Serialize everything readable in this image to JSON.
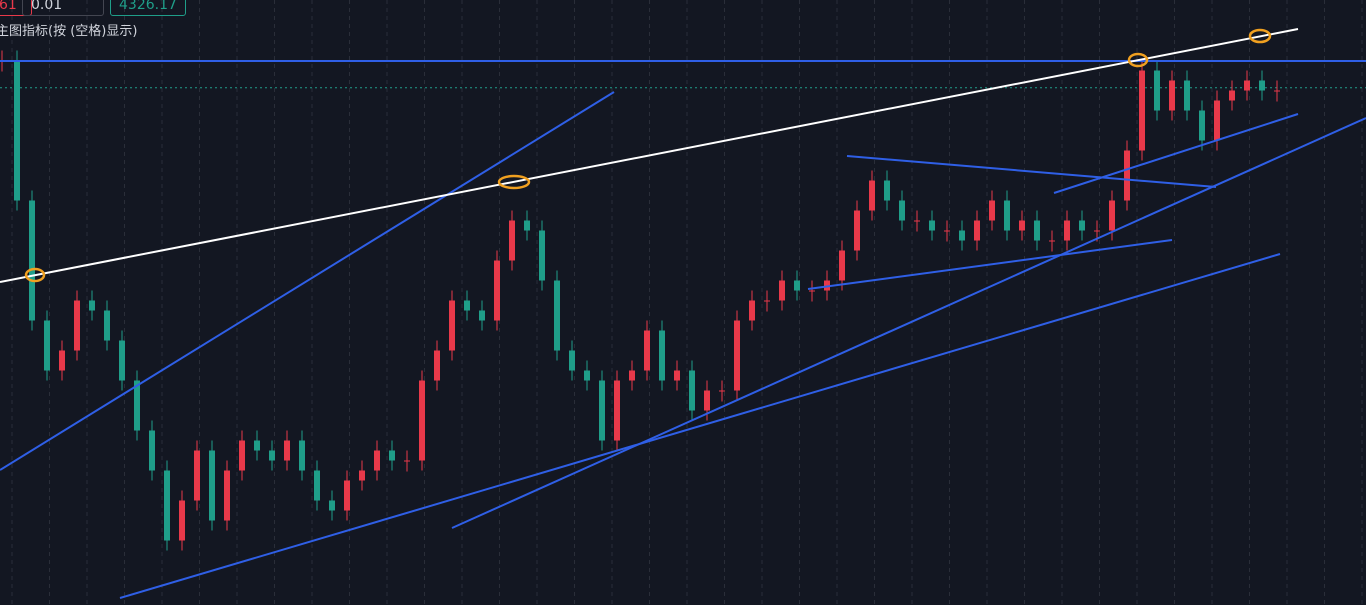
{
  "header": {
    "left": "61",
    "lots": "0.01",
    "price": 4326.17
  },
  "indicator_hint": "主图指标(按 (空格)显示)",
  "chart_data": {
    "type": "candlestick",
    "close": [
      4348,
      4236,
      4140,
      4100,
      4116,
      4156,
      4148,
      4124,
      4092,
      4052,
      4020,
      3964,
      3996,
      4036,
      3980,
      4020,
      4044,
      4036,
      4028,
      4044,
      4020,
      3996,
      3988,
      4012,
      4020,
      4036,
      4028,
      4028,
      4092,
      4116,
      4156,
      4148,
      4140,
      4188,
      4220,
      4212,
      4172,
      4116,
      4100,
      4092,
      4044,
      4092,
      4100,
      4132,
      4092,
      4100,
      4068,
      4084,
      4084,
      4140,
      4156,
      4156,
      4172,
      4164,
      4164,
      4172,
      4196,
      4228,
      4252,
      4236,
      4220,
      4220,
      4212,
      4212,
      4204,
      4220,
      4236,
      4212,
      4220,
      4204,
      4204,
      4220,
      4212,
      4212,
      4236,
      4276,
      4340,
      4308,
      4332,
      4308,
      4284,
      4316,
      4324,
      4332,
      4324,
      4324
    ],
    "ylim": [
      3912.4,
      4396.4
    ],
    "up_color": "#e8394a",
    "down_color": "#1f9e89"
  }
}
